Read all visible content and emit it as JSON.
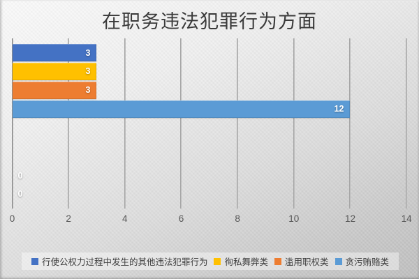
{
  "title": "在职务违法犯罪行为方面",
  "chart_data": {
    "type": "bar",
    "orientation": "horizontal",
    "title": "在职务违法犯罪行为方面",
    "categories": [
      ""
    ],
    "series": [
      {
        "name": "行使公权力过程中发生的其他违法犯罪行为",
        "color": "#4472C4",
        "values": [
          3
        ],
        "data_label": "3"
      },
      {
        "name": "徇私舞弊类",
        "color": "#FFC000",
        "values": [
          3
        ],
        "data_label": "3"
      },
      {
        "name": "滥用职权类",
        "color": "#ED7D31",
        "values": [
          3
        ],
        "data_label": "3"
      },
      {
        "name": "贪污贿赂类",
        "color": "#5B9BD5",
        "values": [
          12
        ],
        "data_label": "12"
      }
    ],
    "zero_data_labels": [
      "0",
      "0"
    ],
    "xlim": [
      0,
      14
    ],
    "x_tick_labels": [
      "0",
      "2",
      "4",
      "6",
      "8",
      "10",
      "12",
      "14"
    ],
    "grid": true,
    "legend_position": "bottom",
    "data_label_color": "#ffffff"
  },
  "colors": {
    "background_top": "#fbfbfb",
    "background_bottom": "#c0c0c0",
    "gridline": "#9a9a9a",
    "tick_text": "#565656",
    "title_text": "#3a3a3a",
    "legend_text": "#3f3f3f",
    "legend_background": "rgba(255,255,255,0.42)"
  }
}
